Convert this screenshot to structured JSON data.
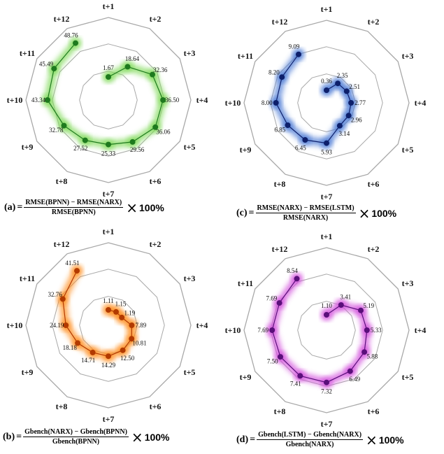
{
  "spoke_labels": [
    "t+1",
    "t+2",
    "t+3",
    "t+4",
    "t+5",
    "t+6",
    "t+7",
    "t+8",
    "t+9",
    "t+10",
    "t+11",
    "t+12"
  ],
  "chart_data": [
    {
      "type": "radar",
      "panel": "a",
      "color": "#1e7a1e",
      "glow": "#7ed957",
      "categories": [
        "t+1",
        "t+2",
        "t+3",
        "t+4",
        "t+5",
        "t+6",
        "t+7",
        "t+8",
        "t+9",
        "t+10",
        "t+11",
        "t+12"
      ],
      "values": [
        1.67,
        18.64,
        32.36,
        36.5,
        36.06,
        29.56,
        25.33,
        27.52,
        32.78,
        43.34,
        45.49,
        48.76
      ],
      "labels": [
        "1.67",
        "18.64",
        "32.36",
        "36.50",
        "36.06",
        "29.56",
        "25.33",
        "27.52",
        "32.78",
        "43.34",
        "45.49",
        "48.76"
      ],
      "formula": {
        "tag": "(a)",
        "eq": "=",
        "numerator": "RMSE(BPNN) − RMSE(NARX)",
        "denominator": "RMSE(BPNN)",
        "times": "×",
        "percent": "100%"
      }
    },
    {
      "type": "radar",
      "panel": "c",
      "color": "#0d1f6b",
      "glow": "#4a78d4",
      "categories": [
        "t+1",
        "t+2",
        "t+3",
        "t+4",
        "t+5",
        "t+6",
        "t+7",
        "t+8",
        "t+9",
        "t+10",
        "t+11",
        "t+12"
      ],
      "values": [
        0.36,
        2.35,
        2.51,
        2.77,
        2.96,
        3.14,
        5.93,
        6.45,
        6.85,
        8.0,
        8.2,
        9.09
      ],
      "labels": [
        "0.36",
        "2.35",
        "2.51",
        "2.77",
        "2.96",
        "3.14",
        "5.93",
        "6.45",
        "6.85",
        "8.00",
        "8.20",
        "9.09"
      ],
      "formula": {
        "tag": "(c)",
        "eq": "=",
        "numerator": "RMSE(NARX) − RMSE(LSTM)",
        "denominator": "RMSE(NARX)",
        "times": "×",
        "percent": "100%"
      }
    },
    {
      "type": "radar",
      "panel": "b",
      "color": "#b23a00",
      "glow": "#ff8c1a",
      "categories": [
        "t+1",
        "t+2",
        "t+3",
        "t+4",
        "t+5",
        "t+6",
        "t+7",
        "t+8",
        "t+9",
        "t+10",
        "t+11",
        "t+12"
      ],
      "values": [
        1.11,
        1.15,
        1.19,
        7.89,
        10.81,
        12.5,
        14.29,
        14.71,
        18.18,
        24.19,
        32.76,
        41.51
      ],
      "labels": [
        "1.11",
        "1.15",
        "1.19",
        "7.89",
        "10.81",
        "12.50",
        "14.29",
        "14.71",
        "18.18",
        "24.19",
        "32.76",
        "41.51"
      ],
      "formula": {
        "tag": "(b)",
        "eq": "=",
        "numerator": "Gbench(NARX) − Gbench(BPNN)",
        "denominator": "Gbench(BPNN)",
        "times": "×",
        "percent": "100%"
      }
    },
    {
      "type": "radar",
      "panel": "d",
      "color": "#5a0f7a",
      "glow": "#d24fdc",
      "categories": [
        "t+1",
        "t+2",
        "t+3",
        "t+4",
        "t+5",
        "t+6",
        "t+7",
        "t+8",
        "t+9",
        "t+10",
        "t+11",
        "t+12"
      ],
      "values": [
        1.1,
        3.41,
        5.19,
        5.33,
        5.88,
        6.49,
        7.32,
        7.41,
        7.5,
        7.69,
        7.69,
        8.54
      ],
      "labels": [
        "1.10",
        "3.41",
        "5.19",
        "5.33",
        "5.88",
        "6.49",
        "7.32",
        "7.41",
        "7.50",
        "7.69",
        "7.69",
        "8.54"
      ],
      "formula": {
        "tag": "(d)",
        "eq": "=",
        "numerator": "Gbench(LSTM) − Gbench(NARX)",
        "denominator": "Gbench(NARX)",
        "times": "×",
        "percent": "100%"
      }
    }
  ]
}
